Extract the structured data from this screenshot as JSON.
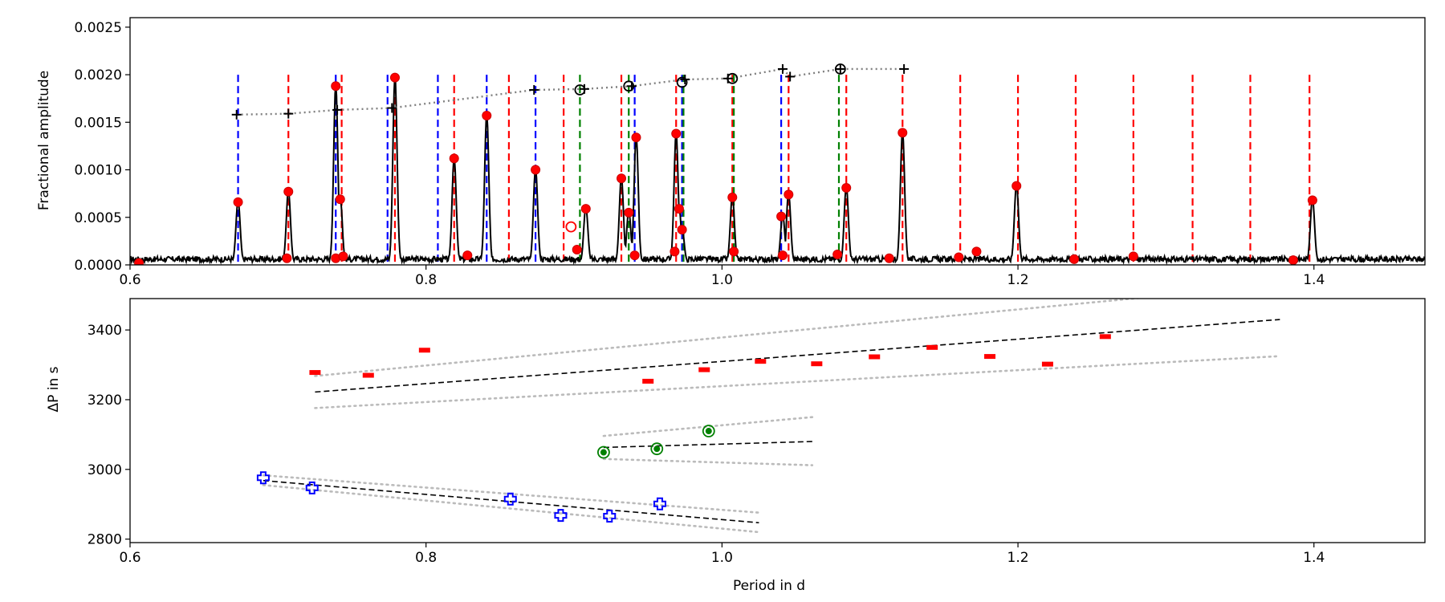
{
  "chart_data": [
    {
      "type": "line",
      "title": "",
      "xlabel": "",
      "ylabel": "Fractional amplitude",
      "xlim": [
        0.6,
        1.475
      ],
      "ylim": [
        0.0,
        0.0026
      ],
      "xticks": [
        "0.6",
        "0.8",
        "1.0",
        "1.2",
        "1.4"
      ],
      "yticks": [
        "0.0000",
        "0.0005",
        "0.0010",
        "0.0015",
        "0.0020",
        "0.0025"
      ],
      "grid": false,
      "colors": {
        "spectrum": "#000000",
        "marker": "#ff0000",
        "red_lines": "#ff0000",
        "blue_lines": "#0000ff",
        "green_lines": "#008000",
        "connector": "#808080"
      },
      "peaks": [
        {
          "x": 0.673,
          "y": 0.00066
        },
        {
          "x": 0.707,
          "y": 0.00077
        },
        {
          "x": 0.739,
          "y": 0.00188
        },
        {
          "x": 0.742,
          "y": 0.00069
        },
        {
          "x": 0.779,
          "y": 0.00197
        },
        {
          "x": 0.819,
          "y": 0.00112
        },
        {
          "x": 0.841,
          "y": 0.00157
        },
        {
          "x": 0.874,
          "y": 0.001
        },
        {
          "x": 0.908,
          "y": 0.00059
        },
        {
          "x": 0.932,
          "y": 0.00091
        },
        {
          "x": 0.942,
          "y": 0.00134
        },
        {
          "x": 0.969,
          "y": 0.00138
        },
        {
          "x": 0.971,
          "y": 0.00059
        },
        {
          "x": 0.973,
          "y": 0.00037
        },
        {
          "x": 1.007,
          "y": 0.00071
        },
        {
          "x": 1.045,
          "y": 0.00074
        },
        {
          "x": 1.041,
          "y": 0.00051
        },
        {
          "x": 1.084,
          "y": 0.00081
        },
        {
          "x": 1.122,
          "y": 0.00139
        },
        {
          "x": 1.199,
          "y": 0.00083
        },
        {
          "x": 1.399,
          "y": 0.00068
        },
        {
          "x": 0.937,
          "y": 0.00055
        }
      ],
      "series": [
        {
          "marker": "filled-circle",
          "color": "#ff0000",
          "points": [
            [
              0.606,
              2e-05
            ],
            [
              0.673,
              0.00066
            ],
            [
              0.707,
              0.00077
            ],
            [
              0.706,
              7e-05
            ],
            [
              0.739,
              0.00188
            ],
            [
              0.742,
              0.00069
            ],
            [
              0.739,
              7e-05
            ],
            [
              0.744,
              9e-05
            ],
            [
              0.779,
              0.00197
            ],
            [
              0.819,
              0.00112
            ],
            [
              0.828,
              0.0001
            ],
            [
              0.841,
              0.00157
            ],
            [
              0.874,
              0.001
            ],
            [
              0.902,
              0.00016
            ],
            [
              0.908,
              0.00059
            ],
            [
              0.932,
              0.00091
            ],
            [
              0.937,
              0.00055
            ],
            [
              0.941,
              0.0001
            ],
            [
              0.942,
              0.00134
            ],
            [
              0.968,
              0.00014
            ],
            [
              0.969,
              0.00138
            ],
            [
              0.971,
              0.00059
            ],
            [
              0.973,
              0.00037
            ],
            [
              1.007,
              0.00071
            ],
            [
              1.008,
              0.00014
            ],
            [
              1.04,
              0.00051
            ],
            [
              1.041,
              0.0001
            ],
            [
              1.045,
              0.00074
            ],
            [
              1.078,
              0.00011
            ],
            [
              1.084,
              0.00081
            ],
            [
              1.113,
              7e-05
            ],
            [
              1.122,
              0.00139
            ],
            [
              1.16,
              8e-05
            ],
            [
              1.172,
              0.00014
            ],
            [
              1.199,
              0.00083
            ],
            [
              1.238,
              6e-05
            ],
            [
              1.278,
              9e-05
            ],
            [
              1.386,
              5e-05
            ],
            [
              1.399,
              0.00068
            ]
          ]
        },
        {
          "marker": "open-circle",
          "color": "#ff0000",
          "points": [
            [
              0.898,
              0.0004
            ]
          ]
        },
        {
          "marker": "plus",
          "color": "#000000",
          "connector": "dotted",
          "points": [
            [
              0.672,
              0.00158
            ],
            [
              0.707,
              0.00159
            ],
            [
              0.74,
              0.00163
            ],
            [
              0.777,
              0.00165
            ],
            [
              0.873,
              0.00184
            ],
            [
              0.907,
              0.00185
            ],
            [
              0.939,
              0.00188
            ],
            [
              0.975,
              0.00195
            ],
            [
              1.004,
              0.00196
            ],
            [
              1.041,
              0.00206
            ],
            [
              1.046,
              0.00198
            ],
            [
              1.08,
              0.00206
            ],
            [
              1.123,
              0.00206
            ]
          ]
        },
        {
          "marker": "open-circle",
          "color": "#000000",
          "points": [
            [
              0.904,
              0.00184
            ],
            [
              0.937,
              0.00188
            ],
            [
              0.973,
              0.00192
            ],
            [
              1.007,
              0.00196
            ],
            [
              1.08,
              0.00206
            ]
          ]
        }
      ],
      "vlines": {
        "red_x": [
          0.707,
          0.743,
          0.779,
          0.819,
          0.856,
          0.893,
          0.932,
          0.969,
          1.007,
          1.045,
          1.084,
          1.122,
          1.161,
          1.2,
          1.239,
          1.278,
          1.318,
          1.357,
          1.397
        ],
        "blue_x": [
          0.673,
          0.739,
          0.774,
          0.808,
          0.841,
          0.874,
          0.941,
          0.973,
          1.04
        ],
        "green_x": [
          0.904,
          0.937,
          0.974,
          1.008,
          1.079
        ],
        "top": 0.002
      }
    },
    {
      "type": "scatter",
      "title": "",
      "xlabel": "Period in d",
      "ylabel": "ΔP in s",
      "xlim": [
        0.6,
        1.475
      ],
      "ylim": [
        2790,
        3490
      ],
      "xticks": [
        "0.6",
        "0.8",
        "1.0",
        "1.2",
        "1.4"
      ],
      "yticks": [
        "2800",
        "3000",
        "3200",
        "3400"
      ],
      "grid": false,
      "series": [
        {
          "marker": "dash",
          "color": "#ff0000",
          "points": [
            [
              0.725,
              3278
            ],
            [
              0.761,
              3270
            ],
            [
              0.799,
              3342
            ],
            [
              0.95,
              3253
            ],
            [
              0.988,
              3286
            ],
            [
              1.026,
              3310
            ],
            [
              1.064,
              3303
            ],
            [
              1.103,
              3323
            ],
            [
              1.142,
              3350
            ],
            [
              1.181,
              3324
            ],
            [
              1.22,
              3302
            ],
            [
              1.259,
              3381
            ]
          ]
        },
        {
          "marker": "circled-dot",
          "color": "#008000",
          "points": [
            [
              0.92,
              3049
            ],
            [
              0.956,
              3059
            ],
            [
              0.991,
              3110
            ]
          ]
        },
        {
          "marker": "circled-plus",
          "color": "#0000ff",
          "points": [
            [
              0.69,
              2976
            ],
            [
              0.723,
              2947
            ],
            [
              0.857,
              2915
            ],
            [
              0.891,
              2868
            ],
            [
              0.924,
              2866
            ],
            [
              0.958,
              2901
            ]
          ]
        }
      ],
      "fits": [
        {
          "fit": [
            [
              0.725,
              3222
            ],
            [
              1.377,
              3430
            ]
          ],
          "band": [
            [
              [
                0.725,
                3268
              ],
              [
                1.377,
                3530
              ]
            ],
            [
              [
                0.725,
                3176
              ],
              [
                1.377,
                3325
              ]
            ]
          ]
        },
        {
          "fit": [
            [
              0.92,
              3063
            ],
            [
              1.061,
              3080
            ]
          ],
          "band": [
            [
              [
                0.92,
                3096
              ],
              [
                1.061,
                3150
              ]
            ],
            [
              [
                0.92,
                3030
              ],
              [
                1.061,
                3012
              ]
            ]
          ]
        },
        {
          "fit": [
            [
              0.69,
              2968
            ],
            [
              1.025,
              2847
            ]
          ],
          "band": [
            [
              [
                0.69,
                2983
              ],
              [
                1.025,
                2876
              ]
            ],
            [
              [
                0.69,
                2955
              ],
              [
                1.025,
                2820
              ]
            ]
          ]
        }
      ]
    }
  ]
}
